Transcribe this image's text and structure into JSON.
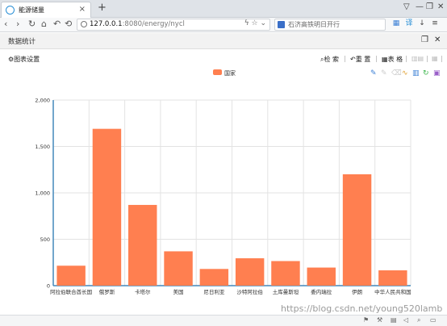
{
  "browser": {
    "tab_title": "能源储量",
    "tab_close_icon": "×",
    "new_tab_icon": "+",
    "url_host": "127.0.0.1",
    "url_path": ":8080/energy/nycl",
    "search_placeholder": "石济高铁明日开行",
    "window_controls": [
      "▽",
      "—",
      "❐",
      "✕"
    ]
  },
  "page": {
    "title": "数据统计"
  },
  "toolbar": {
    "settings_label": "图表设置",
    "settings_icon": "⚙",
    "search_label": "检 索",
    "search_icon": "🔍",
    "reset_label": "重 置",
    "reset_icon": "↶",
    "table_label": "表 格",
    "table_icon": "▦"
  },
  "colors": {
    "bar": "#ff7f50",
    "axis": "#48b",
    "grid": "#e3e3e3"
  },
  "chart_data": {
    "type": "bar",
    "legend": [
      "国家"
    ],
    "legend_position": "top-center",
    "categories": [
      "阿拉伯联合酋长国",
      "俄罗斯",
      "卡塔尔",
      "美国",
      "尼日利亚",
      "沙特阿拉伯",
      "土库曼斯坦",
      "委内瑞拉",
      "伊朗",
      "中华人民共和国"
    ],
    "series": [
      {
        "name": "国家",
        "values": [
          215,
          1690,
          870,
          370,
          180,
          295,
          265,
          195,
          1200,
          165
        ]
      }
    ],
    "ylim": [
      0,
      2000
    ],
    "yticks": [
      0,
      500,
      1000,
      1500,
      2000
    ],
    "ytick_labels": [
      "0",
      "500",
      "1,000",
      "1,500",
      "2,000"
    ],
    "grid": true
  },
  "watermark": "https://blog.csdn.net/young520lamb"
}
